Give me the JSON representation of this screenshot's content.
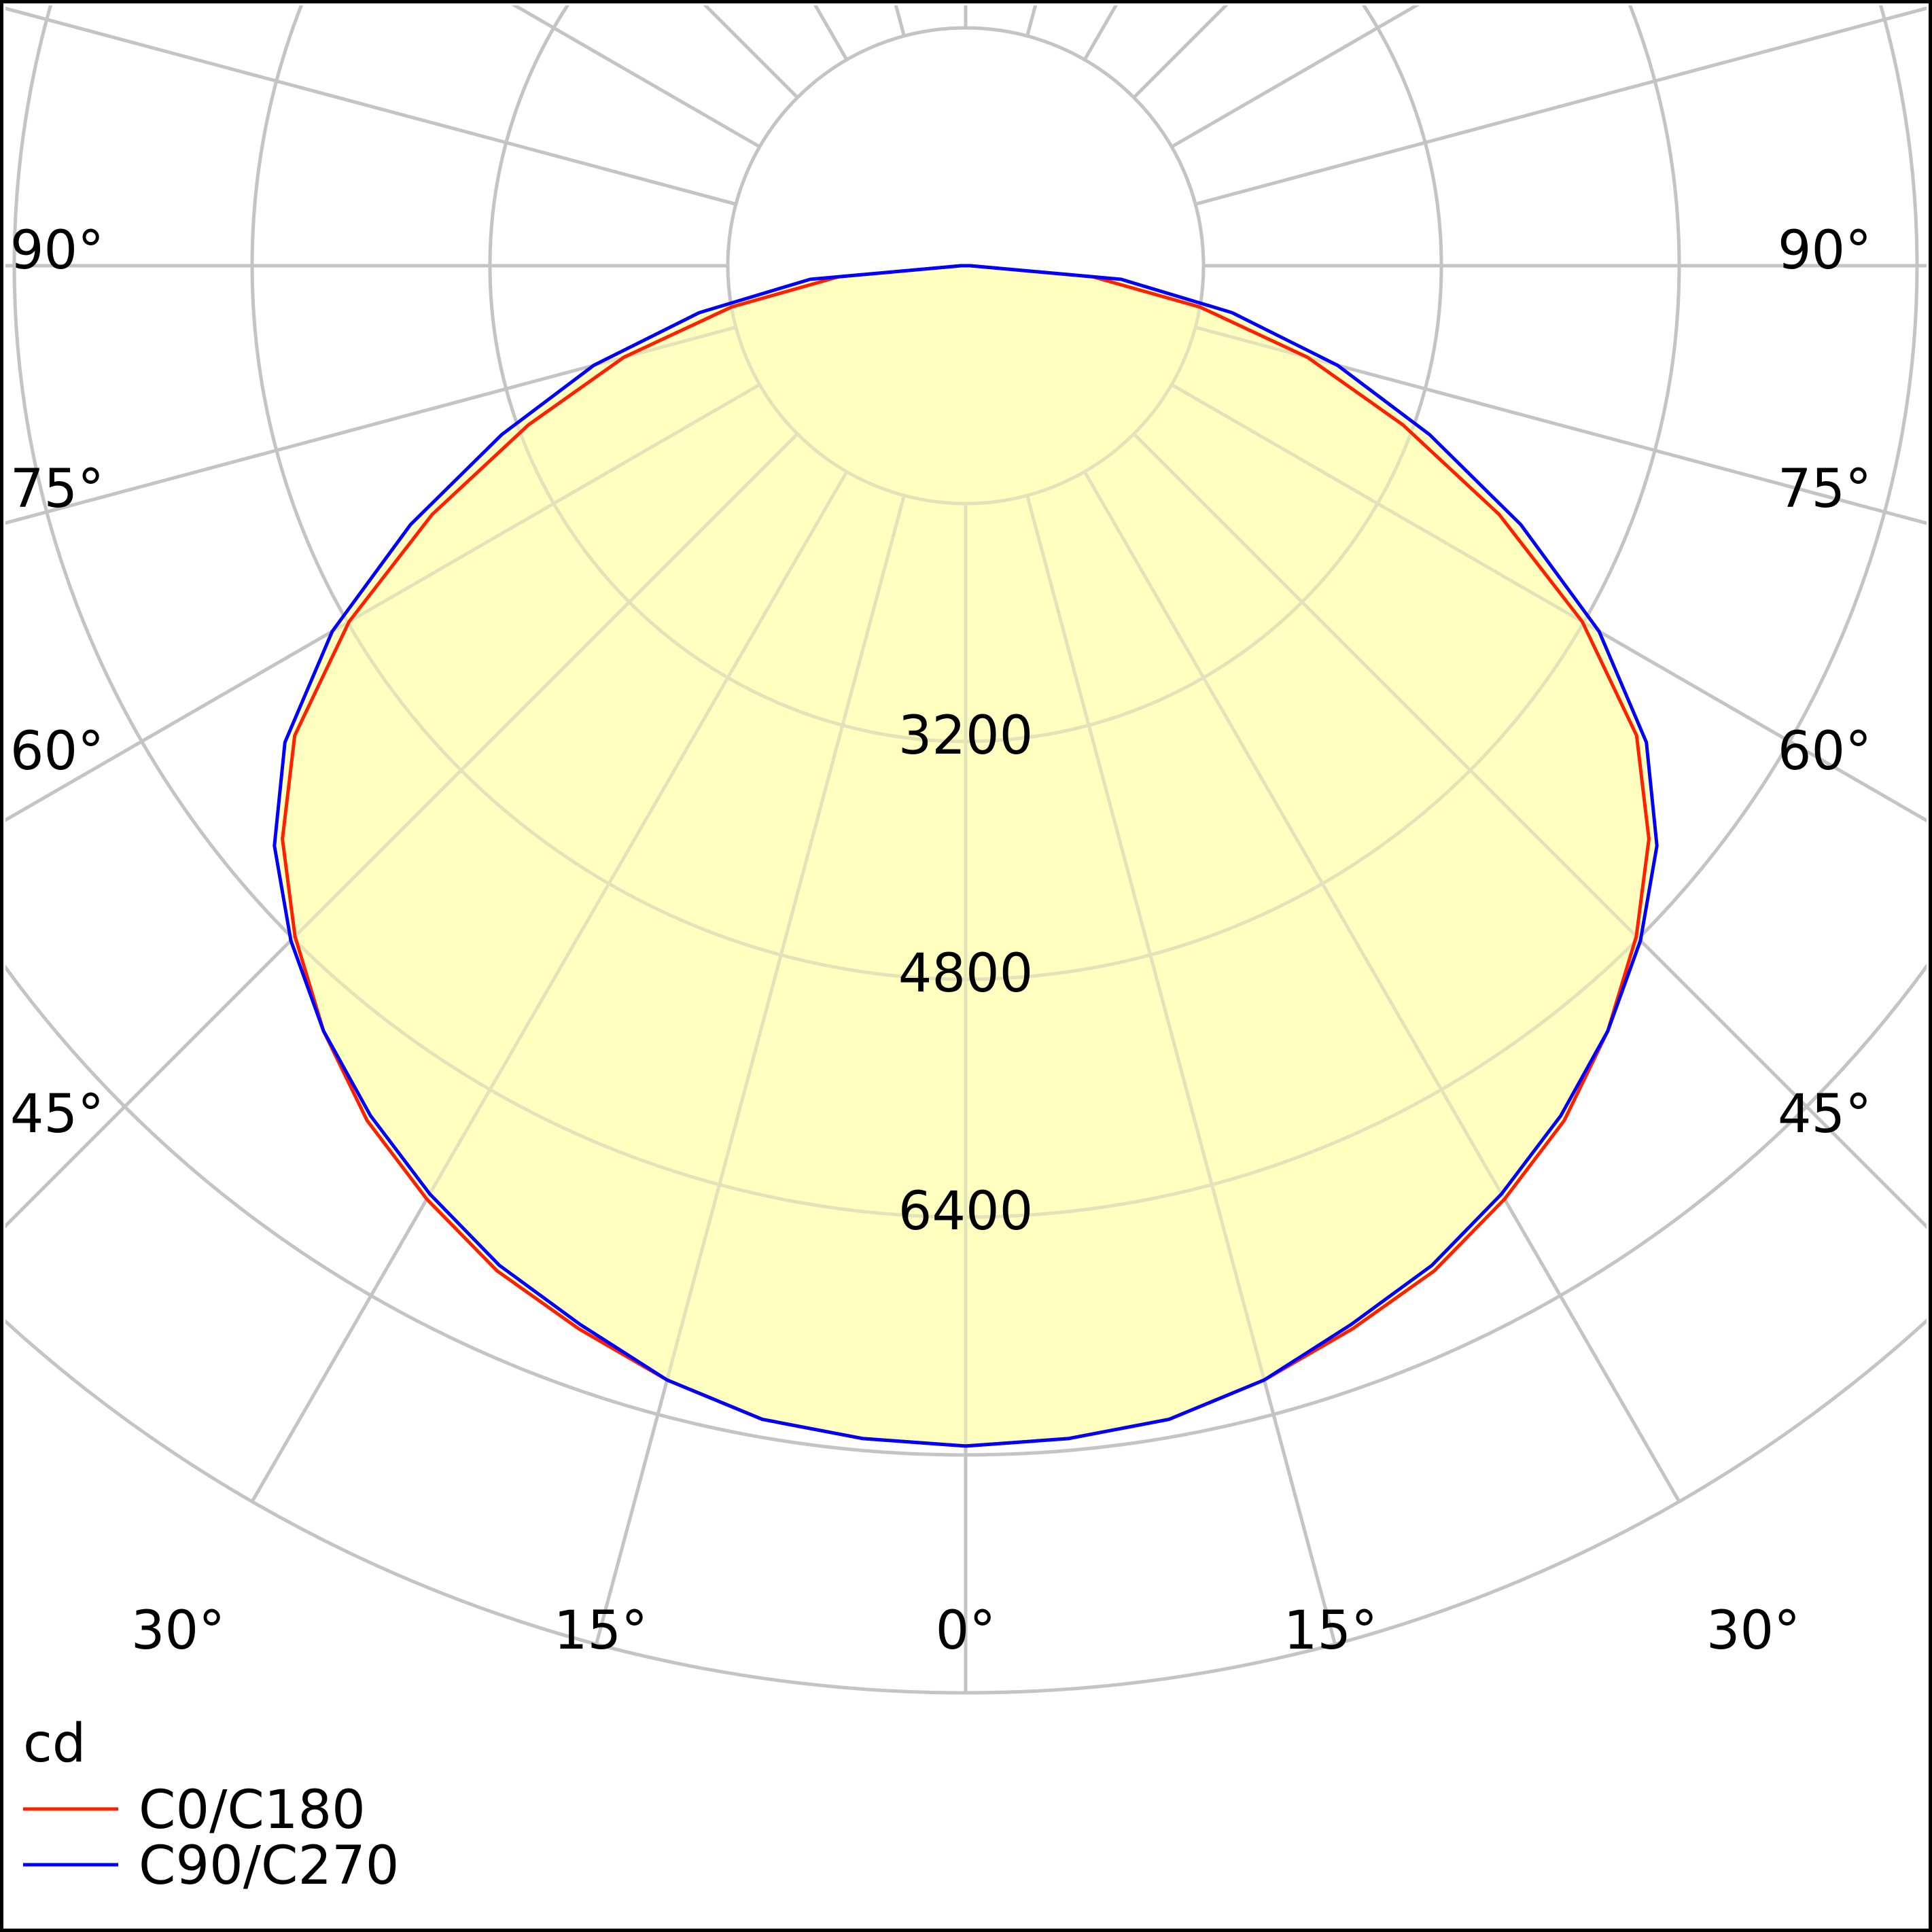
{
  "chart_data": {
    "type": "polar",
    "unit_label": "cd",
    "rlim": [
      0,
      9600
    ],
    "radial_ticks": [
      1600,
      3200,
      4800,
      6400,
      8000,
      9600
    ],
    "radial_tick_labels": [
      "3200",
      "4800",
      "6400"
    ],
    "angle_tick_labels": {
      "left": [
        "90°",
        "75°",
        "60°",
        "45°",
        "30°",
        "15°"
      ],
      "center": "0°",
      "right": [
        "15°",
        "30°",
        "45°",
        "60°",
        "75°",
        "90°"
      ]
    },
    "grid": true,
    "fill_color": "#ffffc0",
    "grid_color": "#d0d0d0",
    "legend": {
      "position": "bottom-left",
      "entries": [
        {
          "label": "C0/C180",
          "color": "#ff2000"
        },
        {
          "label": "C90/C270",
          "color": "#0000ff"
        }
      ]
    },
    "gamma_deg": [
      0,
      5,
      10,
      15,
      20,
      25,
      30,
      35,
      40,
      45,
      50,
      55,
      60,
      65,
      70,
      75,
      80,
      85,
      90
    ],
    "series": [
      {
        "name": "C0/C180",
        "color": "#ff2000",
        "values": [
          7940,
          7920,
          7880,
          7760,
          7610,
          7460,
          7250,
          7020,
          6720,
          6380,
          6000,
          5510,
          4790,
          3960,
          3130,
          2380,
          1600,
          860,
          30
        ]
      },
      {
        "name": "C90/C270",
        "color": "#0000ff",
        "values": [
          7940,
          7920,
          7880,
          7760,
          7580,
          7420,
          7210,
          6980,
          6720,
          6420,
          6070,
          5590,
          4920,
          4120,
          3320,
          2590,
          1820,
          1050,
          30
        ]
      }
    ]
  }
}
